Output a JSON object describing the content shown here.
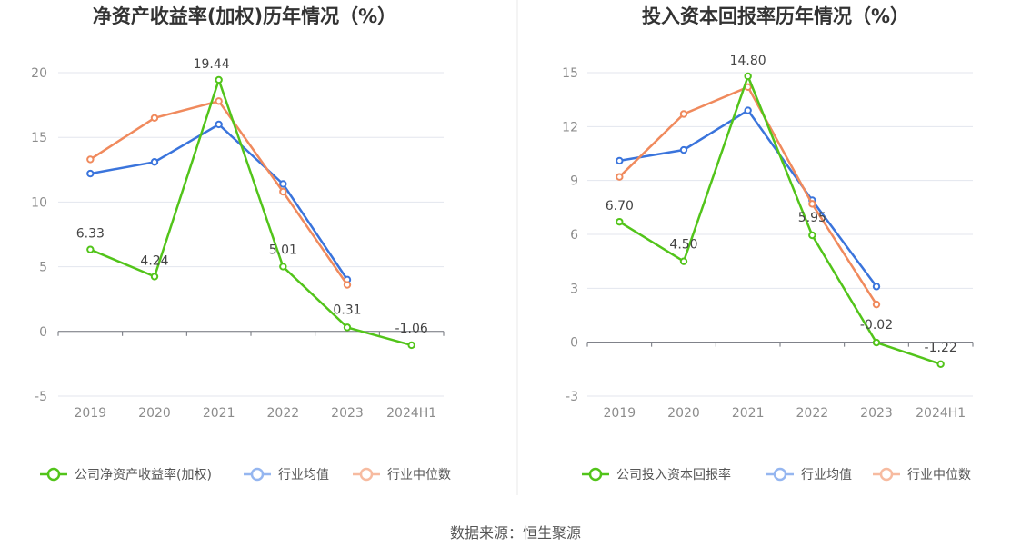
{
  "source_label": "数据来源：恒生聚源",
  "chart_data": [
    {
      "type": "line",
      "title": "净资产收益率(加权)历年情况（%）",
      "categories": [
        "2019",
        "2020",
        "2021",
        "2022",
        "2023",
        "2024H1"
      ],
      "ylim": [
        -5,
        20
      ],
      "yticks": [
        -5,
        0,
        5,
        10,
        15,
        20
      ],
      "grid": true,
      "legend_position": "bottom",
      "series": [
        {
          "name": "公司净资产收益率(加权)",
          "color": "#52c41a",
          "values": [
            6.33,
            4.24,
            19.44,
            5.01,
            0.31,
            -1.06
          ],
          "labels": [
            "6.33",
            "4.24",
            "19.44",
            "5.01",
            "0.31",
            "-1.06"
          ]
        },
        {
          "name": "行业均值",
          "color": "#3a74dc",
          "values": [
            12.2,
            13.1,
            16.0,
            11.4,
            4.0,
            null
          ]
        },
        {
          "name": "行业中位数",
          "color": "#f08a5d",
          "values": [
            13.3,
            16.5,
            17.8,
            10.8,
            3.6,
            null
          ]
        }
      ]
    },
    {
      "type": "line",
      "title": "投入资本回报率历年情况（%）",
      "categories": [
        "2019",
        "2020",
        "2021",
        "2022",
        "2023",
        "2024H1"
      ],
      "ylim": [
        -3,
        15
      ],
      "yticks": [
        -3,
        0,
        3,
        6,
        9,
        12,
        15
      ],
      "grid": true,
      "legend_position": "bottom",
      "series": [
        {
          "name": "公司投入资本回报率",
          "color": "#52c41a",
          "values": [
            6.7,
            4.5,
            14.8,
            5.95,
            -0.02,
            -1.22
          ],
          "labels": [
            "6.70",
            "4.50",
            "14.80",
            "5.95",
            "-0.02",
            "-1.22"
          ]
        },
        {
          "name": "行业均值",
          "color": "#3a74dc",
          "values": [
            10.1,
            10.7,
            12.9,
            7.9,
            3.1,
            null
          ]
        },
        {
          "name": "行业中位数",
          "color": "#f08a5d",
          "values": [
            9.2,
            12.7,
            14.2,
            7.7,
            2.1,
            null
          ]
        }
      ]
    }
  ]
}
